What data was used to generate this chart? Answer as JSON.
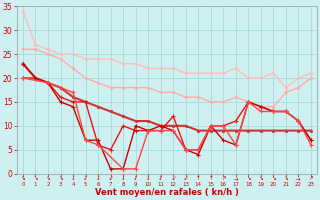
{
  "bg_color": "#cff0f0",
  "grid_color": "#aadddd",
  "xlim": [
    -0.5,
    23.5
  ],
  "ylim": [
    0,
    35
  ],
  "yticks": [
    0,
    5,
    10,
    15,
    20,
    25,
    30,
    35
  ],
  "xticks": [
    0,
    1,
    2,
    3,
    4,
    5,
    6,
    7,
    8,
    9,
    10,
    11,
    12,
    13,
    14,
    15,
    16,
    17,
    18,
    19,
    20,
    21,
    22,
    23
  ],
  "series": [
    {
      "x": [
        0,
        1,
        2,
        3,
        4,
        5,
        6,
        7,
        8,
        9,
        10,
        11,
        12,
        13,
        14,
        15,
        16,
        17,
        18,
        19,
        20,
        21,
        22,
        23
      ],
      "y": [
        34,
        27,
        26,
        25,
        25,
        24,
        24,
        24,
        23,
        23,
        22,
        22,
        22,
        21,
        21,
        21,
        21,
        22,
        20,
        20,
        21,
        18,
        20,
        21
      ],
      "color": "#ffbbbb",
      "lw": 1.0,
      "marker": "D",
      "ms": 1.5,
      "mew": 0.5
    },
    {
      "x": [
        0,
        1,
        2,
        3,
        4,
        5,
        6,
        7,
        8,
        9,
        10,
        11,
        12,
        13,
        14,
        15,
        16,
        17,
        18,
        19,
        20,
        21,
        22,
        23
      ],
      "y": [
        26,
        26,
        25,
        24,
        22,
        20,
        19,
        18,
        18,
        18,
        18,
        17,
        17,
        16,
        16,
        15,
        15,
        16,
        15,
        14,
        14,
        17,
        18,
        20
      ],
      "color": "#ffaaaa",
      "lw": 1.0,
      "marker": "D",
      "ms": 1.5,
      "mew": 0.5
    },
    {
      "x": [
        0,
        1,
        2,
        3,
        4,
        5,
        6,
        7,
        8,
        9,
        10,
        11,
        12,
        13,
        14,
        15,
        16,
        17,
        18,
        19,
        20,
        21,
        22,
        23
      ],
      "y": [
        23,
        20,
        19,
        18,
        16,
        15,
        14,
        13,
        12,
        11,
        11,
        10,
        10,
        10,
        9,
        9,
        9,
        9,
        9,
        9,
        9,
        9,
        9,
        9
      ],
      "color": "#cc3333",
      "lw": 1.5,
      "marker": "s",
      "ms": 2.0,
      "mew": 0.5
    },
    {
      "x": [
        0,
        1,
        2,
        3,
        4,
        5,
        6,
        7,
        8,
        9,
        10,
        11,
        12,
        13,
        14,
        15,
        16,
        17,
        18,
        19,
        20,
        21,
        22,
        23
      ],
      "y": [
        20,
        20,
        19,
        16,
        15,
        15,
        6,
        5,
        10,
        9,
        9,
        9,
        12,
        5,
        5,
        10,
        10,
        11,
        15,
        14,
        13,
        13,
        11,
        7
      ],
      "color": "#ee1111",
      "lw": 1.0,
      "marker": "+",
      "ms": 3.5,
      "mew": 0.8
    },
    {
      "x": [
        0,
        1,
        2,
        3,
        4,
        5,
        6,
        7,
        8,
        9,
        10,
        11,
        12,
        13,
        14,
        15,
        16,
        17,
        18,
        19,
        20,
        21,
        22,
        23
      ],
      "y": [
        23,
        20,
        19,
        15,
        14,
        7,
        7,
        1,
        1,
        10,
        9,
        10,
        9,
        5,
        4,
        10,
        7,
        6,
        15,
        14,
        13,
        13,
        11,
        7
      ],
      "color": "#cc0000",
      "lw": 1.0,
      "marker": "+",
      "ms": 3.5,
      "mew": 0.8
    },
    {
      "x": [
        0,
        2,
        3,
        4,
        5,
        6,
        8,
        9,
        10,
        11,
        12,
        13,
        14,
        15,
        16,
        17,
        18,
        19,
        20,
        21,
        22,
        23
      ],
      "y": [
        20,
        19,
        18,
        17,
        7,
        6,
        1,
        1,
        9,
        9,
        9,
        5,
        5,
        10,
        10,
        6,
        15,
        13,
        13,
        13,
        11,
        6
      ],
      "color": "#ff4444",
      "lw": 1.0,
      "marker": "+",
      "ms": 3.5,
      "mew": 0.8
    }
  ],
  "arrows": [
    "↘",
    "↘",
    "↘",
    "↘",
    "↓",
    "↓",
    "↓",
    "↙",
    "↓",
    "↓",
    "↓",
    "↓",
    "↙",
    "↙",
    "↑",
    "↑",
    "↗",
    "→",
    "↘",
    "↘",
    "↘",
    "↘",
    "→",
    "↗"
  ],
  "xlabel": "Vent moyen/en rafales ( kn/h )",
  "xlabel_color": "#cc0000",
  "tick_color": "#cc0000",
  "ylabel_color": "#cc0000"
}
